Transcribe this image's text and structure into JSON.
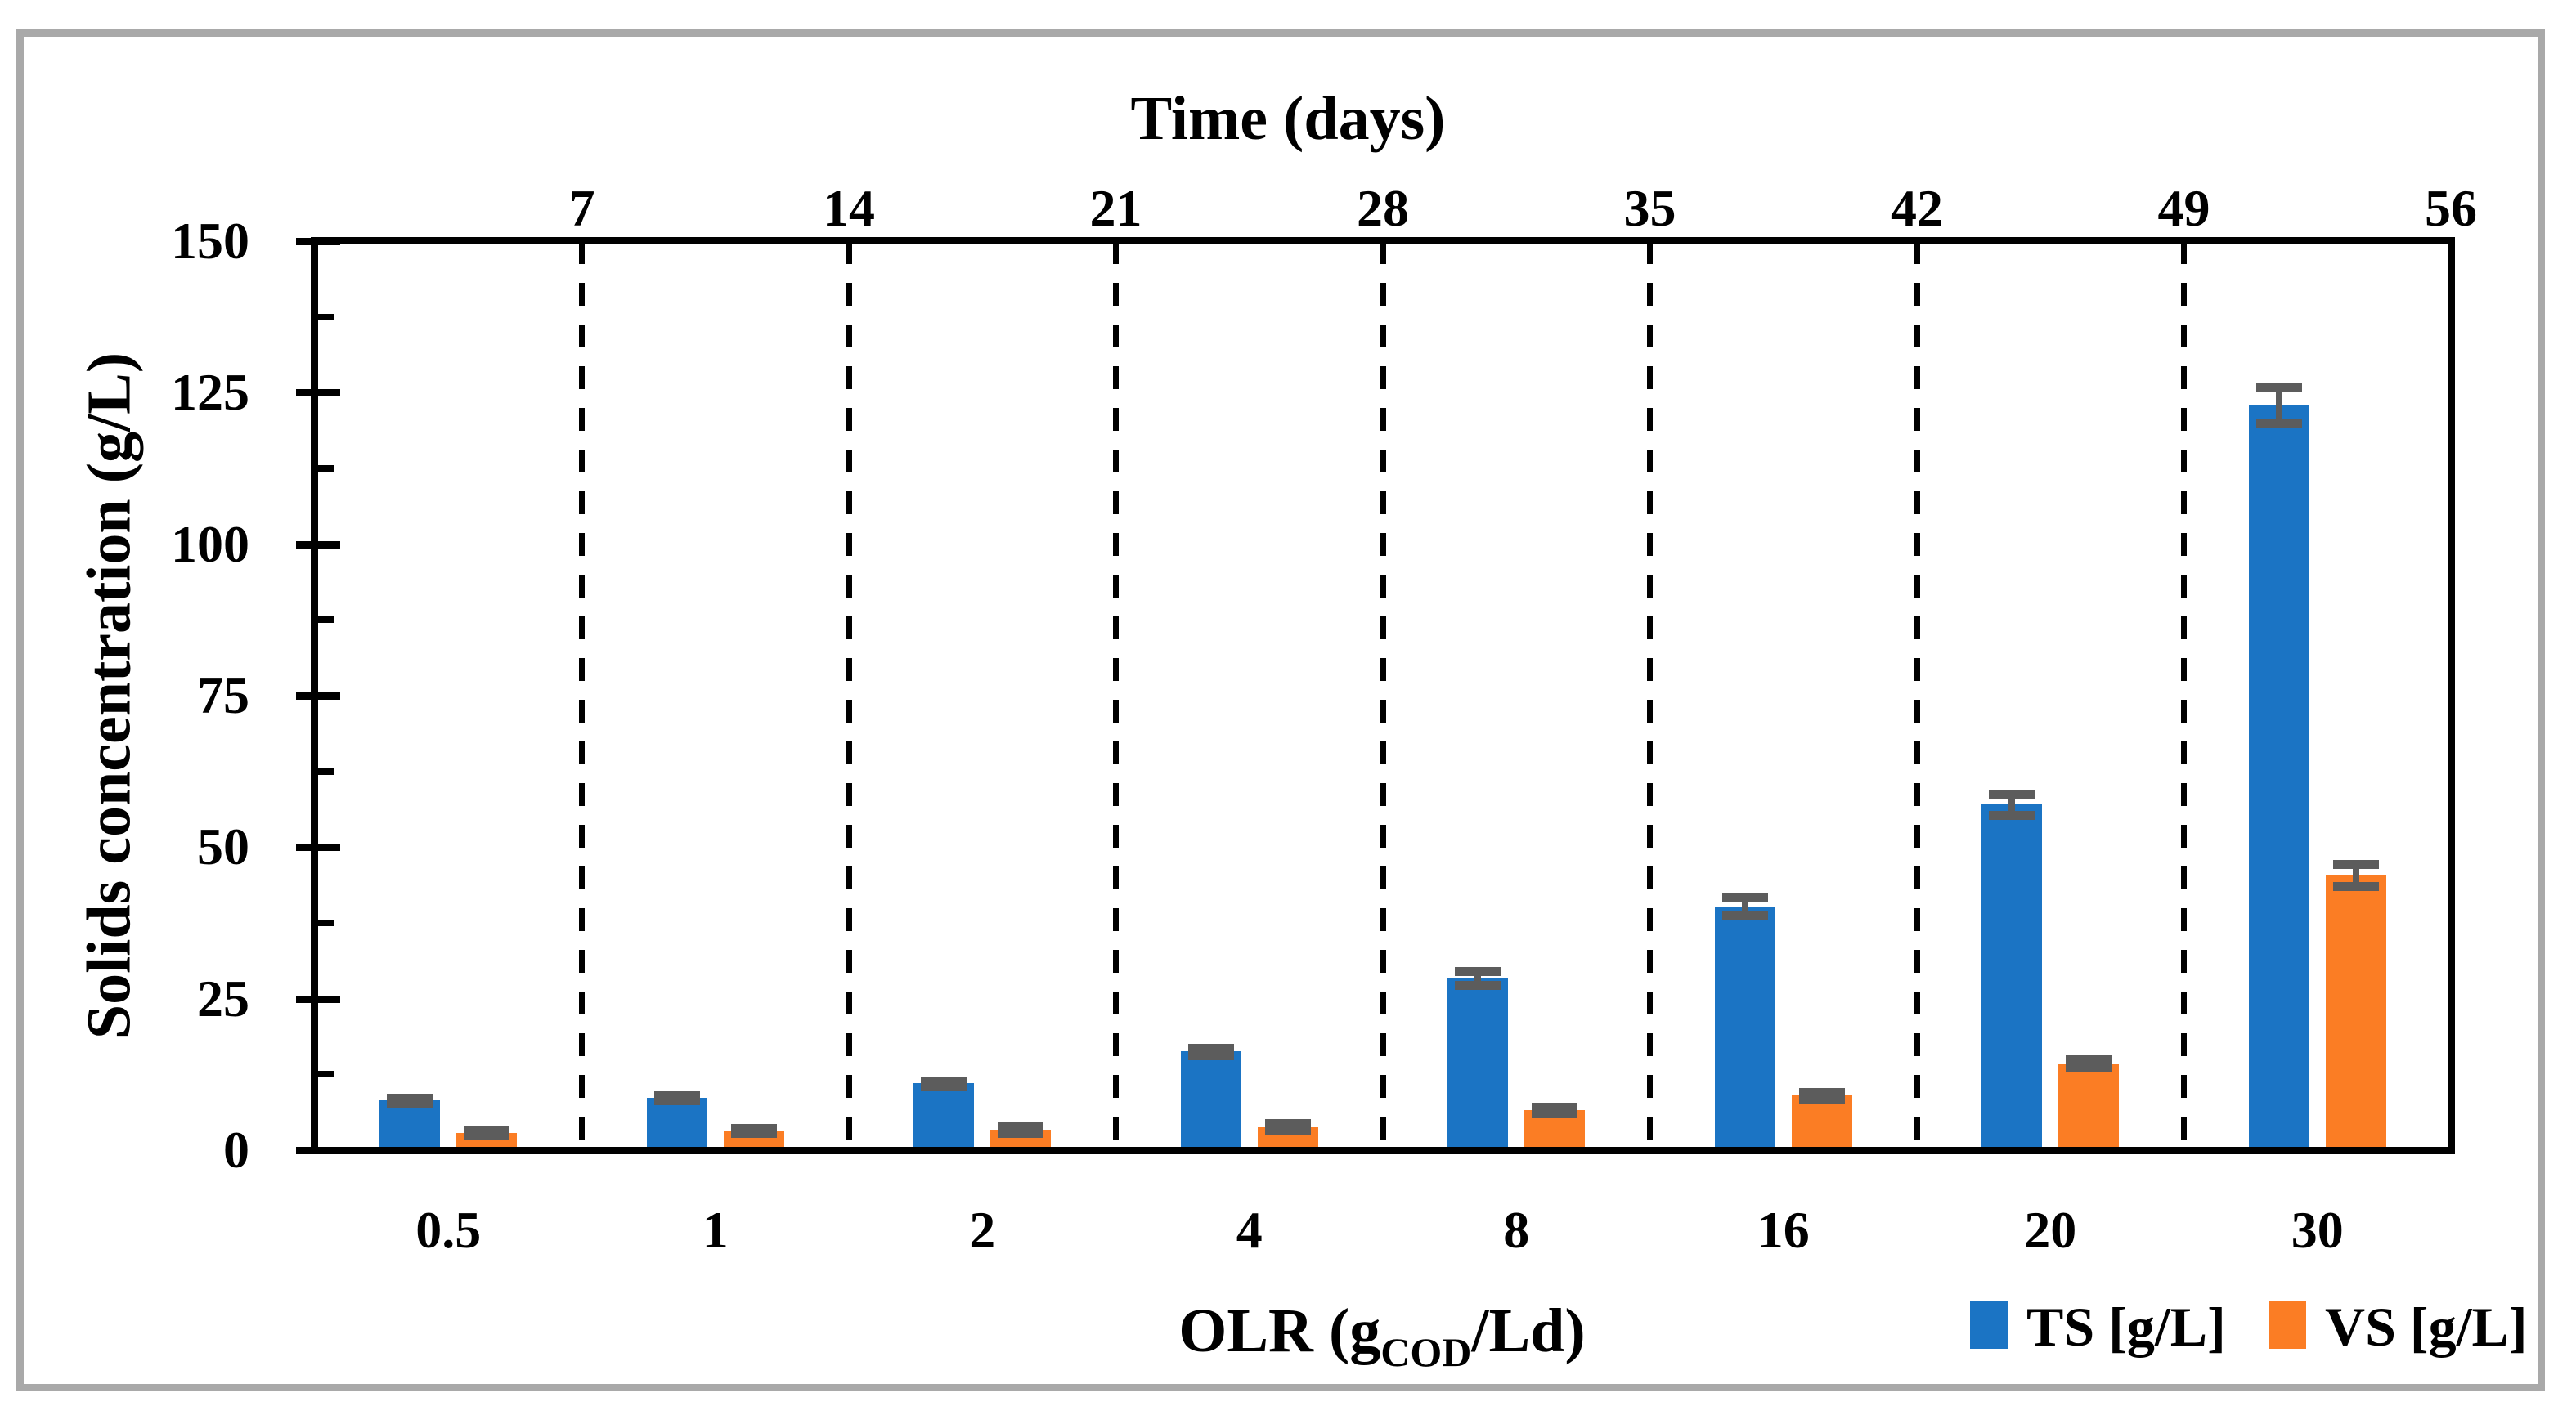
{
  "chart_data": {
    "type": "bar",
    "title": "",
    "categories": [
      "0.5",
      "1",
      "2",
      "4",
      "8",
      "16",
      "20",
      "30"
    ],
    "series": [
      {
        "name": "TS [g/L]",
        "color": "#1B74C4",
        "values": [
          8.2,
          8.6,
          11.0,
          16.3,
          28.4,
          40.2,
          57.0,
          123.0
        ],
        "errors": [
          0.4,
          0.4,
          0.5,
          0.6,
          1.1,
          1.5,
          1.7,
          3.0
        ]
      },
      {
        "name": "VS [g/L]",
        "color": "#FB7D24",
        "values": [
          2.9,
          3.2,
          3.4,
          3.8,
          6.6,
          9.0,
          14.3,
          45.4
        ],
        "errors": [
          0.4,
          0.4,
          0.5,
          0.6,
          0.5,
          0.6,
          0.7,
          1.8
        ]
      }
    ],
    "xlabel": "OLR (gCOD/Ld)",
    "xlabel_parts": {
      "pre": "OLR (g",
      "sub": "COD",
      "post": "/Ld)"
    },
    "ylabel": "Solids concentration (g/L)",
    "ylim": [
      0,
      150
    ],
    "y_major_ticks": [
      0,
      25,
      50,
      75,
      100,
      125,
      150
    ],
    "y_minor_step": 12.5,
    "y_major_step": 25,
    "secondary_x": {
      "label": "Time (days)",
      "ticks": [
        7,
        14,
        21,
        28,
        35,
        42,
        49,
        56
      ],
      "max": 56
    },
    "separators_days": [
      7,
      14,
      21,
      28,
      35,
      42,
      49
    ],
    "error_color": "#5C5C5C",
    "grid": "vertical-dashed",
    "legend_position": "bottom-right"
  }
}
